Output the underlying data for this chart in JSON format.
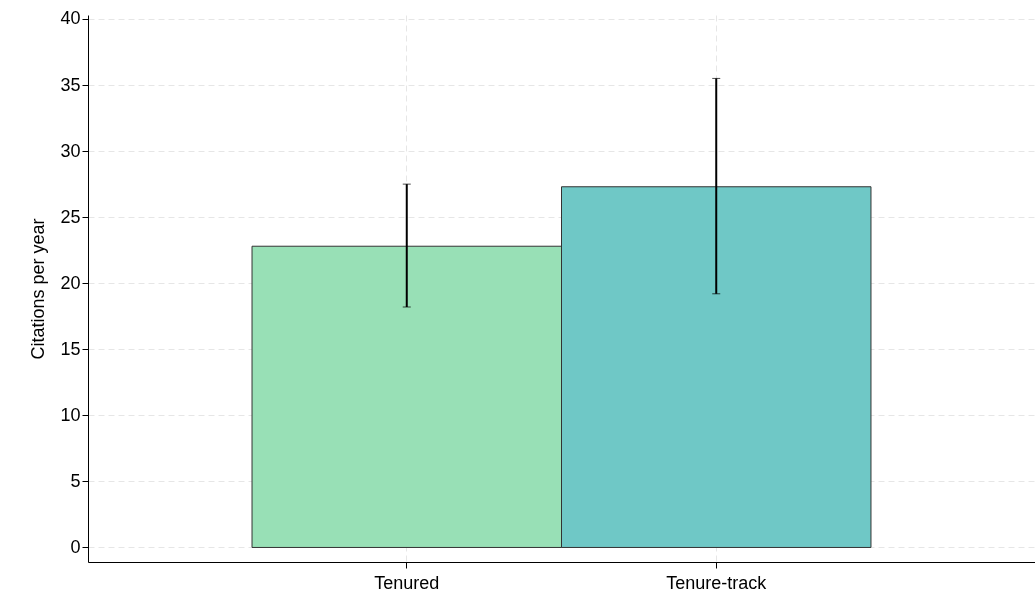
{
  "chart_data": {
    "type": "bar",
    "ylabel": "Citations per year",
    "categories": [
      "Tenured",
      "Tenure-track"
    ],
    "values": [
      22.8,
      27.3
    ],
    "colors": [
      "#98e0b6",
      "#6fc8c6"
    ],
    "errors": [
      [
        18.2,
        27.5
      ],
      [
        19.2,
        35.5
      ]
    ],
    "ylim": [
      -1.1,
      40.3
    ],
    "yticks": [
      0,
      5,
      10,
      15,
      20,
      25,
      30,
      35,
      40
    ],
    "grid": true
  }
}
